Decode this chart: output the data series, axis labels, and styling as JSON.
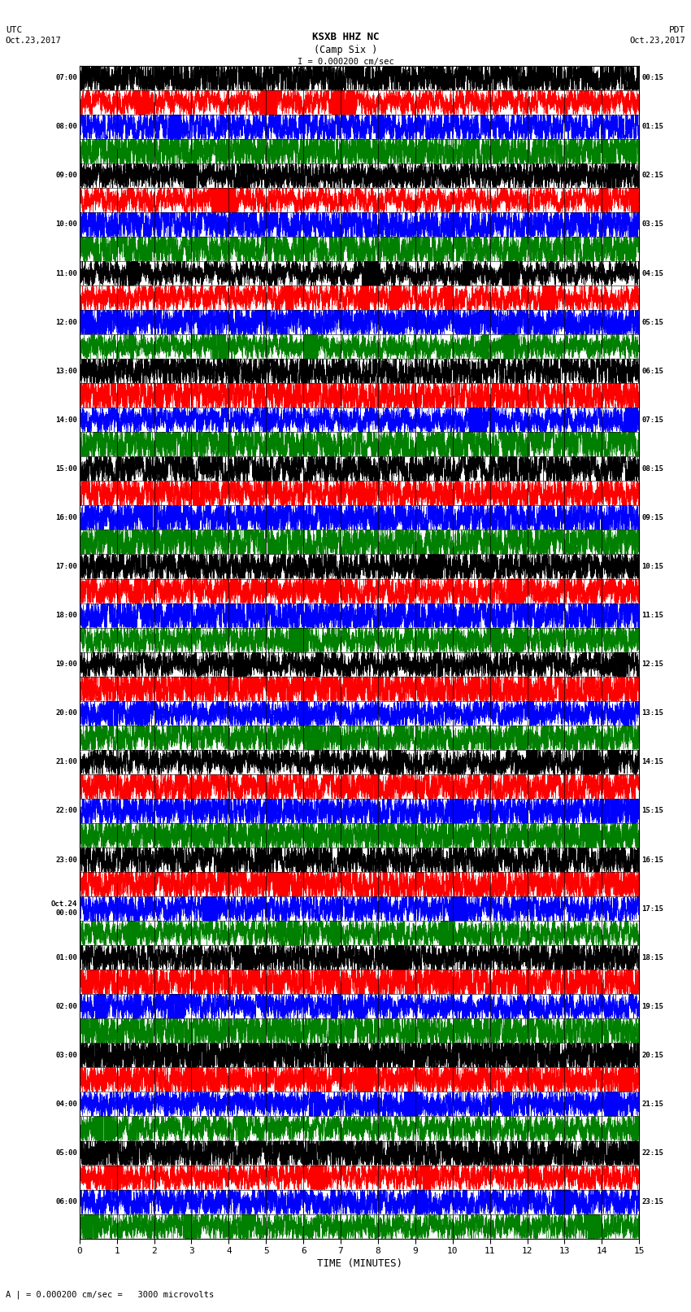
{
  "title_line1": "KSXB HHZ NC",
  "title_line2": "(Camp Six )",
  "scale_label": "I = 0.000200 cm/sec",
  "utc_label": "UTC\nOct.23,2017",
  "pdt_label": "PDT\nOct.23,2017",
  "bottom_label": "A | = 0.000200 cm/sec =   3000 microvolts",
  "xlabel": "TIME (MINUTES)",
  "left_times": [
    "07:00",
    "",
    "08:00",
    "",
    "09:00",
    "",
    "10:00",
    "",
    "11:00",
    "",
    "12:00",
    "",
    "13:00",
    "",
    "14:00",
    "",
    "15:00",
    "",
    "16:00",
    "",
    "17:00",
    "",
    "18:00",
    "",
    "19:00",
    "",
    "20:00",
    "",
    "21:00",
    "",
    "22:00",
    "",
    "23:00",
    "",
    "Oct.24\n00:00",
    "",
    "01:00",
    "",
    "02:00",
    "",
    "03:00",
    "",
    "04:00",
    "",
    "05:00",
    "",
    "06:00",
    ""
  ],
  "right_times": [
    "00:15",
    "",
    "01:15",
    "",
    "02:15",
    "",
    "03:15",
    "",
    "04:15",
    "",
    "05:15",
    "",
    "06:15",
    "",
    "07:15",
    "",
    "08:15",
    "",
    "09:15",
    "",
    "10:15",
    "",
    "11:15",
    "",
    "12:15",
    "",
    "13:15",
    "",
    "14:15",
    "",
    "15:15",
    "",
    "16:15",
    "",
    "17:15",
    "",
    "18:15",
    "",
    "19:15",
    "",
    "20:15",
    "",
    "21:15",
    "",
    "22:15",
    "",
    "23:15",
    ""
  ],
  "n_rows": 48,
  "n_points": 9000,
  "time_range": [
    0,
    15
  ],
  "xticks": [
    0,
    1,
    2,
    3,
    4,
    5,
    6,
    7,
    8,
    9,
    10,
    11,
    12,
    13,
    14,
    15
  ],
  "row_colors": [
    "black",
    "red",
    "blue",
    "green",
    "black",
    "red",
    "blue",
    "green",
    "black",
    "red",
    "blue",
    "green",
    "black",
    "red",
    "blue",
    "green",
    "black",
    "red",
    "blue",
    "green",
    "black",
    "red",
    "blue",
    "green",
    "black",
    "red",
    "blue",
    "green",
    "black",
    "red",
    "blue",
    "green",
    "black",
    "red",
    "blue",
    "green",
    "black",
    "red",
    "blue",
    "green",
    "black",
    "red",
    "blue",
    "green",
    "black",
    "red",
    "blue",
    "green"
  ],
  "amplitude": 0.45,
  "bg_color": "white"
}
